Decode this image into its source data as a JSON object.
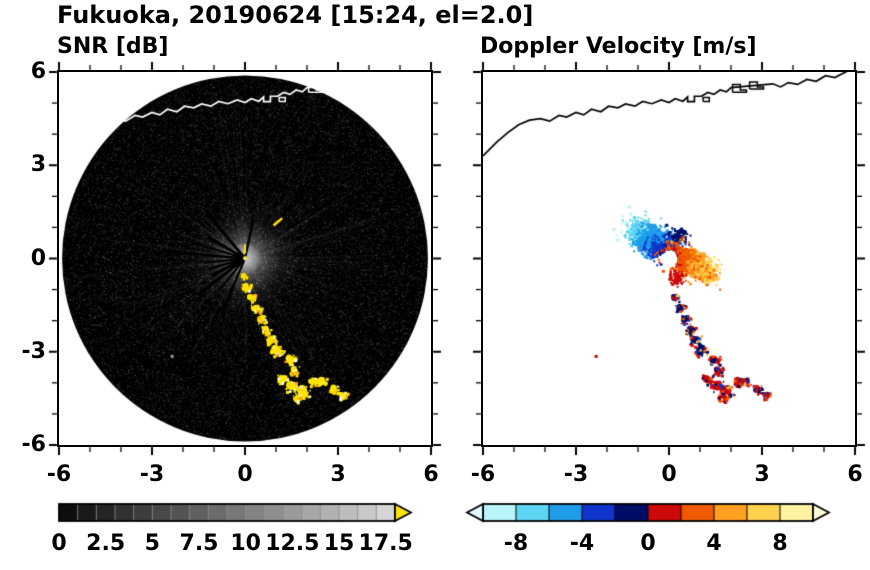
{
  "figure": {
    "title": "Fukuoka, 20190624 [15:24, el=2.0]",
    "background": "#ffffff"
  },
  "panels": {
    "snr": {
      "title": "SNR [dB]"
    },
    "doppler": {
      "title": "Doppler Velocity [m/s]"
    }
  },
  "chart_data": [
    {
      "id": "snr",
      "type": "heatmap",
      "variant": "radar-ppi",
      "title": "SNR [dB]",
      "xlim": [
        -6,
        6
      ],
      "ylim": [
        -6,
        6
      ],
      "x_tick_values": [
        -6,
        -3,
        0,
        3,
        6
      ],
      "x_tick_labels": [
        "-6",
        "-3",
        "0",
        "3",
        "6"
      ],
      "y_tick_values": [
        6,
        3,
        0,
        -3,
        -6
      ],
      "y_tick_labels": [
        "6",
        "3",
        "0",
        "-3",
        "-6"
      ],
      "minor_tick_step": 1,
      "grid": false,
      "scan": {
        "center": [
          0,
          0
        ],
        "radius": 5.9,
        "background": "#000000"
      },
      "colorbar": {
        "min": 0,
        "max": 18,
        "tick_values": [
          0,
          2.5,
          5,
          7.5,
          10,
          12.5,
          15,
          17.5
        ],
        "tick_labels": [
          "0",
          "2.5",
          "5",
          "7.5",
          "10",
          "12.5",
          "15",
          "17.5"
        ],
        "colormap": "grayscale",
        "start_color": "#050505",
        "end_color": "#d8d8d8",
        "over_arrow_color": "#ffe400",
        "segment_step": 1
      },
      "features": {
        "noise": "speckled gray receiver noise over black disk, brighter haze near radar center",
        "center_glow_radius": 2.0,
        "blocked_spoke_angles_deg": [
          78,
          130,
          150,
          163,
          175,
          186,
          196,
          207,
          218,
          231,
          247
        ],
        "center_mark_color": "#ffe400",
        "ne_dash": {
          "from": [
            0.92,
            1.06
          ],
          "to": [
            1.2,
            1.3
          ]
        },
        "echo_color": "#ffe400",
        "echo_core_color": "#ffffff",
        "echo_trail": [
          [
            -0.05,
            -0.55,
            4
          ],
          [
            0.02,
            -0.9,
            5
          ],
          [
            0.18,
            -1.25,
            5
          ],
          [
            0.35,
            -1.6,
            6
          ],
          [
            0.52,
            -1.95,
            6
          ],
          [
            0.68,
            -2.3,
            6
          ],
          [
            0.85,
            -2.62,
            7
          ],
          [
            1.02,
            -2.95,
            8
          ],
          [
            1.45,
            -3.25,
            7
          ],
          [
            1.58,
            -3.6,
            6
          ],
          [
            1.22,
            -3.88,
            7
          ],
          [
            1.52,
            -4.1,
            8
          ],
          [
            1.85,
            -4.28,
            9
          ],
          [
            2.2,
            -3.95,
            6
          ],
          [
            1.7,
            -4.5,
            6
          ],
          [
            2.45,
            -3.95,
            6
          ],
          [
            2.85,
            -4.2,
            6
          ],
          [
            3.15,
            -4.4,
            5
          ]
        ],
        "isolated_echo": {
          "xy": [
            -2.35,
            -3.15
          ],
          "color": "#9a9a9a"
        },
        "coastline_color": "#ffffff"
      }
    },
    {
      "id": "doppler",
      "type": "heatmap",
      "variant": "radar-ppi",
      "title": "Doppler Velocity [m/s]",
      "xlim": [
        -6,
        6
      ],
      "ylim": [
        -6,
        6
      ],
      "x_tick_values": [
        -6,
        -3,
        0,
        3,
        6
      ],
      "x_tick_labels": [
        "-6",
        "-3",
        "0",
        "3",
        "6"
      ],
      "y_tick_values": [
        6,
        3,
        0,
        -3,
        -6
      ],
      "y_tick_labels": [
        "6",
        "3",
        "0",
        "-3",
        "-6"
      ],
      "minor_tick_step": 1,
      "grid": false,
      "colorbar": {
        "min": -10,
        "max": 10,
        "tick_values": [
          -8,
          -4,
          0,
          4,
          8
        ],
        "tick_labels": [
          "-8",
          "-4",
          "0",
          "4",
          "8"
        ],
        "segment_step": 2,
        "bin_colors": [
          "#b8f4f8",
          "#5cd6f2",
          "#1e9ee8",
          "#0f35cc",
          "#000d66",
          "#cc0a0a",
          "#f05a00",
          "#ffa020",
          "#ffd24d",
          "#fff2a0"
        ],
        "under_arrow_color": "#e2fbfd",
        "over_arrow_color": "#ffffd8"
      },
      "features": {
        "radar_hole": {
          "xy": [
            0,
            0
          ],
          "radius": 0.3
        },
        "approaching_fan": {
          "center": [
            -0.5,
            0.55
          ],
          "angle_deg": -32,
          "sigma": [
            0.75,
            0.38
          ],
          "v_range": [
            -9.5,
            -0.5
          ]
        },
        "near_zero_negative_specks": {
          "center": [
            0.3,
            0.75
          ],
          "sigma": [
            0.25,
            0.2
          ],
          "v_range": [
            -2,
            -0.3
          ]
        },
        "receding_fan": {
          "center": [
            0.6,
            -0.1
          ],
          "angle_deg": -20,
          "sigma": [
            0.65,
            0.35
          ],
          "v_range": [
            0.5,
            9.5
          ]
        },
        "receding_lobe": {
          "center": [
            1.15,
            -0.45
          ],
          "angle_deg": -30,
          "sigma": [
            0.38,
            0.22
          ],
          "v_range": [
            3,
            8
          ]
        },
        "near_zero_positive_specks": {
          "center": [
            0.25,
            -0.65
          ],
          "sigma": [
            0.22,
            0.18
          ],
          "v_range": [
            0.3,
            2
          ]
        },
        "velocity_trail": [
          [
            0.18,
            -1.25,
            5
          ],
          [
            0.35,
            -1.6,
            6
          ],
          [
            0.52,
            -1.95,
            6
          ],
          [
            0.68,
            -2.3,
            6
          ],
          [
            0.85,
            -2.62,
            7
          ],
          [
            1.02,
            -2.95,
            8
          ],
          [
            1.45,
            -3.25,
            7
          ],
          [
            1.58,
            -3.6,
            6
          ],
          [
            1.22,
            -3.88,
            7
          ],
          [
            1.52,
            -4.1,
            8
          ],
          [
            1.85,
            -4.28,
            9
          ],
          [
            2.2,
            -3.95,
            6
          ],
          [
            1.7,
            -4.5,
            6
          ],
          [
            2.45,
            -3.95,
            6
          ],
          [
            2.85,
            -4.2,
            6
          ],
          [
            3.15,
            -4.4,
            5
          ]
        ],
        "isolated_speck": {
          "xy": [
            -2.35,
            -3.15
          ],
          "color": "#cc0000"
        },
        "coastline_color": "#000000"
      }
    }
  ],
  "coastline": {
    "mainland": [
      [
        -6,
        3.3
      ],
      [
        -5.55,
        3.75
      ],
      [
        -5.2,
        4.05
      ],
      [
        -4.85,
        4.3
      ],
      [
        -4.5,
        4.45
      ],
      [
        -4.15,
        4.5
      ],
      [
        -3.85,
        4.42
      ],
      [
        -3.55,
        4.6
      ],
      [
        -3.3,
        4.55
      ],
      [
        -3.0,
        4.7
      ],
      [
        -2.75,
        4.62
      ],
      [
        -2.5,
        4.8
      ],
      [
        -2.2,
        4.72
      ],
      [
        -1.95,
        4.9
      ],
      [
        -1.65,
        4.85
      ],
      [
        -1.4,
        4.97
      ],
      [
        -1.1,
        4.9
      ],
      [
        -0.85,
        5.05
      ],
      [
        -0.55,
        4.98
      ],
      [
        -0.25,
        5.1
      ],
      [
        0.0,
        5.02
      ],
      [
        0.2,
        5.14
      ],
      [
        0.45,
        5.06
      ],
      [
        0.6,
        5.2
      ],
      [
        0.6,
        5.05
      ],
      [
        0.82,
        5.05
      ],
      [
        0.82,
        5.22
      ],
      [
        1.05,
        5.22
      ],
      [
        1.25,
        5.34
      ],
      [
        1.45,
        5.28
      ],
      [
        1.65,
        5.42
      ],
      [
        1.85,
        5.36
      ],
      [
        2.0,
        5.5
      ],
      [
        3.35,
        5.62
      ],
      [
        3.6,
        5.52
      ],
      [
        3.85,
        5.66
      ],
      [
        4.15,
        5.6
      ],
      [
        4.45,
        5.76
      ],
      [
        4.75,
        5.7
      ],
      [
        5.05,
        5.88
      ],
      [
        5.35,
        5.82
      ],
      [
        5.6,
        5.95
      ],
      [
        5.8,
        6.05
      ]
    ],
    "structures": [
      [
        [
          2.05,
          5.35
        ],
        [
          2.05,
          5.6
        ],
        [
          2.3,
          5.6
        ],
        [
          2.3,
          5.42
        ],
        [
          2.5,
          5.42
        ],
        [
          2.5,
          5.35
        ],
        [
          2.05,
          5.35
        ]
      ],
      [
        [
          2.6,
          5.45
        ],
        [
          2.6,
          5.68
        ],
        [
          2.85,
          5.68
        ],
        [
          2.85,
          5.52
        ],
        [
          3.05,
          5.52
        ],
        [
          3.05,
          5.45
        ],
        [
          2.6,
          5.45
        ]
      ],
      [
        [
          1.1,
          5.05
        ],
        [
          1.1,
          5.18
        ],
        [
          1.3,
          5.18
        ],
        [
          1.3,
          5.05
        ],
        [
          1.1,
          5.05
        ]
      ]
    ]
  }
}
